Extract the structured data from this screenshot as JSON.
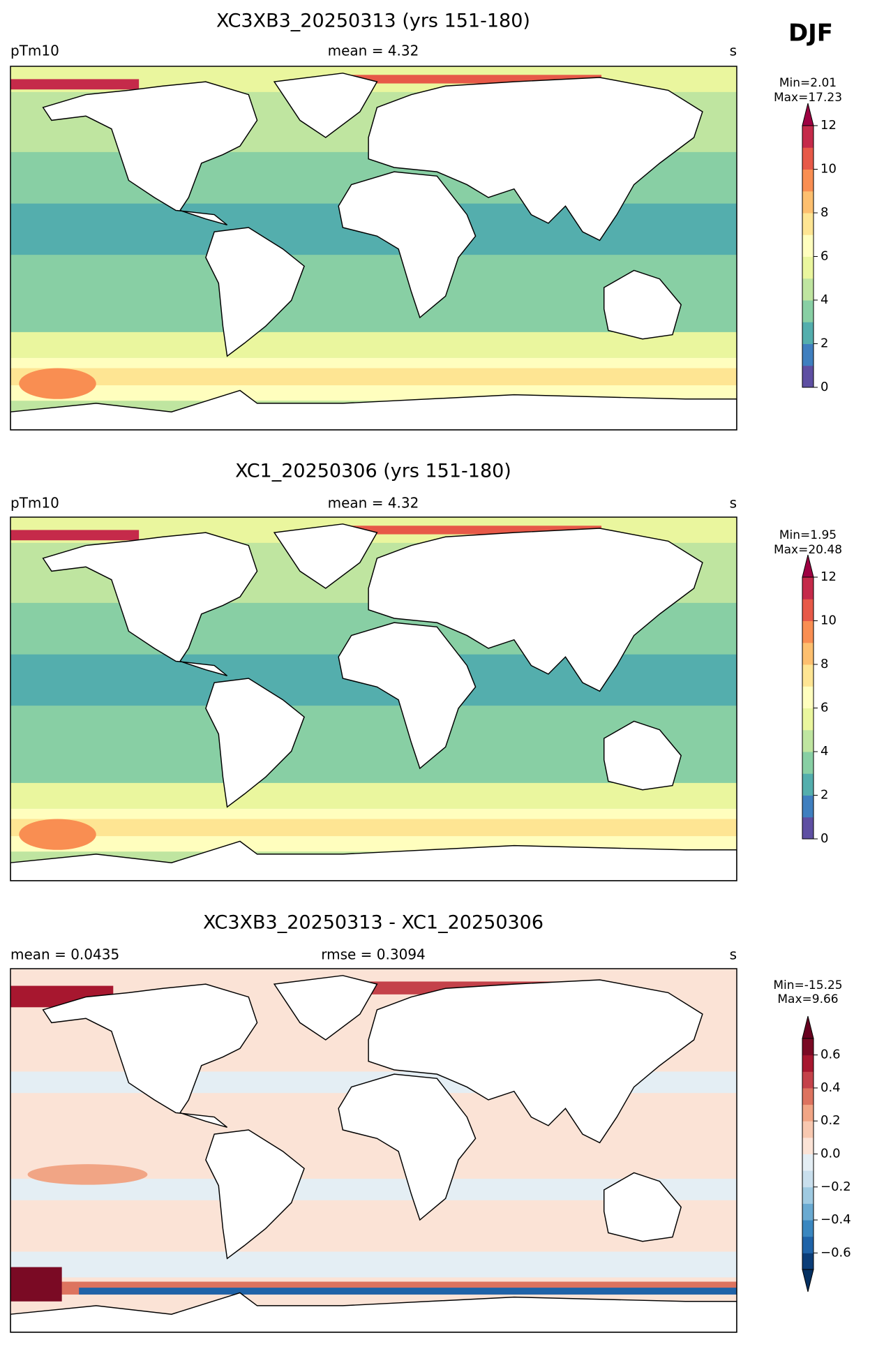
{
  "season": "DJF",
  "panels": [
    {
      "title": "XC3XB3_20250313 (yrs 151-180)",
      "left": "pTm10",
      "center": "mean = 4.32",
      "right": "s",
      "colorbar": {
        "min_label": "Min=2.01",
        "max_label": "Max=17.23",
        "lim": [
          0,
          12
        ],
        "ticks": [
          0,
          2,
          4,
          6,
          8,
          10,
          12
        ],
        "colors": [
          "#5e4fa2",
          "#3f7fbf",
          "#54aead",
          "#88cfa4",
          "#bfe5a0",
          "#eaf69e",
          "#fffebe",
          "#fee593",
          "#fdbf6f",
          "#f98e52",
          "#e75948",
          "#c52a4a"
        ],
        "over_color": "#9e0142"
      }
    },
    {
      "title": "XC1_20250306 (yrs 151-180)",
      "left": "pTm10",
      "center": "mean = 4.32",
      "right": "s",
      "colorbar": {
        "min_label": "Min=1.95",
        "max_label": "Max=20.48",
        "lim": [
          0,
          12
        ],
        "ticks": [
          0,
          2,
          4,
          6,
          8,
          10,
          12
        ],
        "colors": [
          "#5e4fa2",
          "#3f7fbf",
          "#54aead",
          "#88cfa4",
          "#bfe5a0",
          "#eaf69e",
          "#fffebe",
          "#fee593",
          "#fdbf6f",
          "#f98e52",
          "#e75948",
          "#c52a4a"
        ],
        "over_color": "#9e0142"
      }
    },
    {
      "title": "XC3XB3_20250313 - XC1_20250306",
      "left": "mean = 0.0435",
      "center": "rmse = 0.3094",
      "right": "s",
      "colorbar": {
        "min_label": "Min=-15.25",
        "max_label": "Max=9.66",
        "lim": [
          -0.7,
          0.7
        ],
        "ticks": [
          {
            "value": -0.6,
            "label": "−0.6"
          },
          {
            "value": -0.4,
            "label": "−0.4"
          },
          {
            "value": -0.2,
            "label": "−0.2"
          },
          {
            "value": 0,
            "label": "0.0"
          },
          0.2,
          0.4,
          0.6
        ],
        "colors": [
          "#0b3d78",
          "#1f63a8",
          "#3a87c0",
          "#6aaad1",
          "#9fcae1",
          "#c9dfed",
          "#e4eef4",
          "#fbe3d6",
          "#f8c8b0",
          "#f1a585",
          "#dd735f",
          "#c4424a",
          "#a7172f",
          "#7a0a24"
        ],
        "under_color": "#053061",
        "over_color": "#67001f"
      }
    }
  ]
}
